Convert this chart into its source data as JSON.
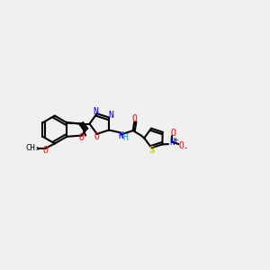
{
  "background_color": "#f0f0f0",
  "bond_color": "#000000",
  "atom_colors": {
    "O": "#ff0000",
    "N": "#0000ff",
    "S": "#cccc00",
    "C": "#000000",
    "H": "#00aaaa",
    "plus": "#0000ff",
    "minus": "#ff0000"
  },
  "figsize": [
    3.0,
    3.0
  ],
  "dpi": 100
}
